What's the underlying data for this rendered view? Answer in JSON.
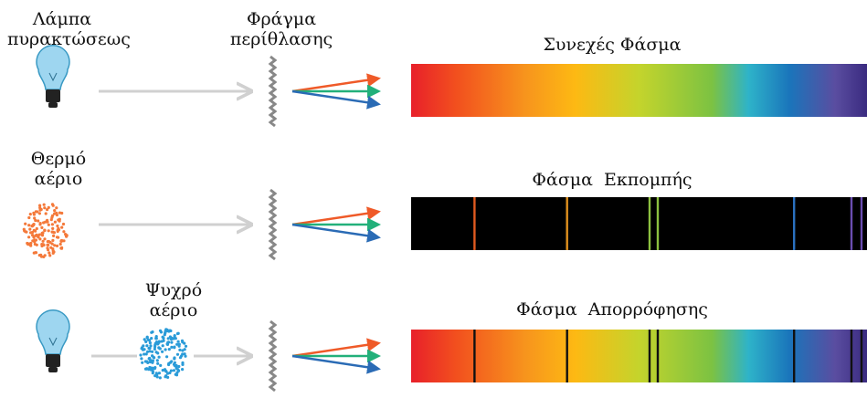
{
  "labels": {
    "lamp": "Λάμπα\nπυρακτώσεως",
    "grating": "Φράγμα\nπερίθλασης",
    "hot_gas": "Θερμό\nαέριο",
    "cold_gas": "Ψυχρό\nαέριο"
  },
  "rows": [
    {
      "title": "Συνεχές Φάσμα"
    },
    {
      "title": "Φάσμα  Εκπομπής"
    },
    {
      "title": "Φάσμα  Απορρόφησης"
    }
  ],
  "spectrum": {
    "stops": [
      {
        "pos": 0.0,
        "color": "#e8202a"
      },
      {
        "pos": 0.1,
        "color": "#f2501e"
      },
      {
        "pos": 0.25,
        "color": "#f7941d"
      },
      {
        "pos": 0.36,
        "color": "#fdb913"
      },
      {
        "pos": 0.5,
        "color": "#c4d42c"
      },
      {
        "pos": 0.66,
        "color": "#7cc242"
      },
      {
        "pos": 0.74,
        "color": "#2eb3c9"
      },
      {
        "pos": 0.83,
        "color": "#1a75bb"
      },
      {
        "pos": 0.93,
        "color": "#5a4da0"
      },
      {
        "pos": 1.0,
        "color": "#3a2b80"
      }
    ],
    "lines": [
      {
        "pos": 0.139,
        "color": "#e05a20"
      },
      {
        "pos": 0.342,
        "color": "#e0901e"
      },
      {
        "pos": 0.523,
        "color": "#8cc040"
      },
      {
        "pos": 0.541,
        "color": "#8cc040"
      },
      {
        "pos": 0.84,
        "color": "#2a70c0"
      },
      {
        "pos": 0.966,
        "color": "#6a4db0"
      },
      {
        "pos": 0.988,
        "color": "#6a4db0"
      }
    ]
  },
  "colors": {
    "beam": "#d0d0d0",
    "grating": "#888888",
    "ray_red": "#ef5a28",
    "ray_green": "#22b07a",
    "ray_blue": "#2a6bb5",
    "hot_gas": "#f4793a",
    "cold_gas": "#2a9bd8",
    "bulb": "#9ed6f0",
    "bulb_base": "#222222",
    "emission_bg": "#000000",
    "absorption_line": "#111111"
  }
}
